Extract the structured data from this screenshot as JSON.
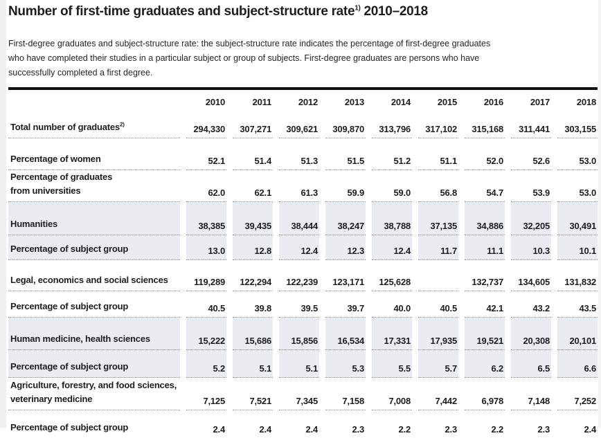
{
  "page": {
    "title": {
      "text": "Number of first-time graduates and subject-structure rate",
      "sup": "1)",
      "suffix": " 2010–2018"
    },
    "description_lines": [
      "First-degree graduates and subject-structure rate: the subject-structure rate indicates the percentage of first-degree graduates",
      "who have completed their studies in a particular subject or group of subjects. First-degree graduates are persons who have",
      "successfully completed a first degree."
    ]
  },
  "colors": {
    "row_shade": "#e9edf2",
    "dotted_rule": "#8b8b8b",
    "heavy_rule": "#111111"
  },
  "table": {
    "years": [
      "2010",
      "2011",
      "2012",
      "2013",
      "2014",
      "2015",
      "2016",
      "2017",
      "2018"
    ],
    "rows": [
      {
        "label_lines": [
          "Total number of graduates"
        ],
        "label_sup": "2)",
        "shaded": false,
        "values": [
          "294,330",
          "307,271",
          "309,621",
          "309,870",
          "313,796",
          "317,102",
          "315,168",
          "311,441",
          "303,155"
        ]
      },
      {
        "label_lines": [
          "Percentage of women"
        ],
        "shaded": false,
        "values": [
          "52.1",
          "51.4",
          "51.3",
          "51.5",
          "51.2",
          "51.1",
          "52.0",
          "52.6",
          "53.0"
        ]
      },
      {
        "label_lines": [
          "Percentage of graduates",
          "from universities"
        ],
        "shaded": false,
        "values": [
          "62.0",
          "62.1",
          "61.3",
          "59.9",
          "59.0",
          "56.8",
          "54.7",
          "53.9",
          "53.0"
        ]
      },
      {
        "label_lines": [
          "Humanities"
        ],
        "shaded": true,
        "values": [
          "38,385",
          "39,435",
          "38,444",
          "38,247",
          "38,788",
          "37,135",
          "34,886",
          "32,205",
          "30,491"
        ]
      },
      {
        "label_lines": [
          "Percentage of subject group"
        ],
        "shaded": true,
        "values": [
          "13.0",
          "12.8",
          "12.4",
          "12.3",
          "12.4",
          "11.7",
          "11.1",
          "10.3",
          "10.1"
        ]
      },
      {
        "label_lines": [
          "Legal, economics and social sciences"
        ],
        "shaded": false,
        "values": [
          "119,289",
          "122,294",
          "122,239",
          "123,171",
          "125,628",
          "",
          "132,737",
          "134,605",
          "131,832"
        ]
      },
      {
        "label_lines": [
          "Percentage of subject group"
        ],
        "shaded": false,
        "values": [
          "40.5",
          "39.8",
          "39.5",
          "39.7",
          "40.0",
          "40.5",
          "42.1",
          "43.2",
          "43.5"
        ]
      },
      {
        "label_lines": [
          "Human medicine, health sciences"
        ],
        "shaded": true,
        "values": [
          "15,222",
          "15,686",
          "15,856",
          "16,534",
          "17,331",
          "17,935",
          "19,521",
          "20,308",
          "20,101"
        ]
      },
      {
        "label_lines": [
          "Percentage of subject group"
        ],
        "shaded": true,
        "values": [
          "5.2",
          "5.1",
          "5.1",
          "5.3",
          "5.5",
          "5.7",
          "6.2",
          "6.5",
          "6.6"
        ]
      },
      {
        "label_lines": [
          "Agriculture, forestry, and food sciences,",
          "veterinary medicine"
        ],
        "shaded": false,
        "values": [
          "7,125",
          "7,521",
          "7,345",
          "7,158",
          "7,008",
          "7,442",
          "6,978",
          "7,148",
          "7,252"
        ]
      },
      {
        "label_lines": [
          "Percentage of subject group"
        ],
        "shaded": false,
        "values": [
          "2.4",
          "2.4",
          "2.4",
          "2.3",
          "2.2",
          "2.3",
          "2.2",
          "2.3",
          "2.4"
        ]
      }
    ]
  }
}
